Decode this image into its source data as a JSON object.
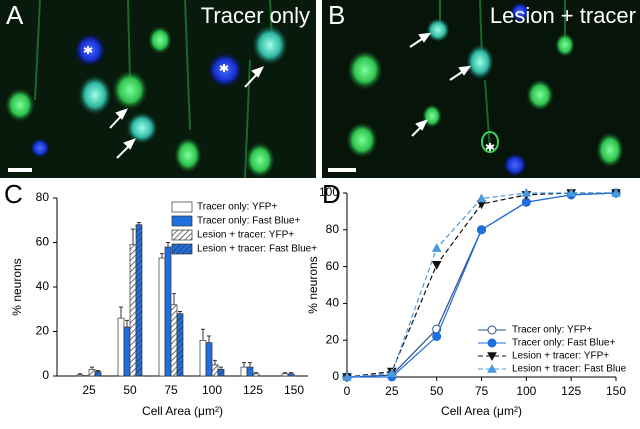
{
  "panels": [
    {
      "label": "A",
      "title": "Tracer only"
    },
    {
      "label": "B",
      "title": "Lesion + tracer"
    }
  ],
  "chart_data": [
    {
      "type": "bar",
      "panel_label": "C",
      "xlabel": "Cell Area (μm²)",
      "ylabel": "% neurons",
      "categories": [
        "25",
        "50",
        "75",
        "100",
        "125",
        "150"
      ],
      "ylim": [
        0,
        80
      ],
      "yticks": [
        0,
        20,
        40,
        60,
        80
      ],
      "series": [
        {
          "name": "Tracer only: YFP+",
          "color": "#ffffff",
          "hatch": false,
          "values": [
            0.5,
            26,
            53,
            16,
            4,
            1
          ],
          "errors": [
            0.5,
            5,
            2,
            5,
            2,
            0.5
          ]
        },
        {
          "name": "Tracer only: Fast Blue+",
          "color": "#1f6fe0",
          "hatch": false,
          "values": [
            0.2,
            22,
            58,
            15,
            4,
            1
          ],
          "errors": [
            0,
            3,
            2,
            3,
            2,
            0.5
          ]
        },
        {
          "name": "Lesion + tracer: YFP+",
          "color": "#ffffff",
          "hatch": true,
          "values": [
            3,
            59,
            32,
            5,
            1,
            0
          ],
          "errors": [
            1,
            7,
            5,
            2,
            0.5,
            0
          ]
        },
        {
          "name": "Lesion + tracer: Fast Blue+",
          "color": "#1f6fe0",
          "hatch": true,
          "values": [
            2,
            68,
            28,
            3,
            0,
            0
          ],
          "errors": [
            0.5,
            1,
            1,
            1,
            0,
            0
          ]
        }
      ]
    },
    {
      "type": "line",
      "panel_label": "D",
      "xlabel": "Cell Area (μm²)",
      "ylabel": "% neurons",
      "x": [
        0,
        25,
        50,
        75,
        100,
        125,
        150
      ],
      "xlim": [
        0,
        150
      ],
      "xticks": [
        0,
        25,
        50,
        75,
        100,
        125,
        150
      ],
      "ylim": [
        0,
        100
      ],
      "yticks": [
        0,
        20,
        40,
        60,
        80,
        100
      ],
      "series": [
        {
          "name": "Tracer only: YFP+",
          "color": "#2b4f8c",
          "marker": "circle-open",
          "dash": false,
          "values": [
            0,
            1,
            26,
            80,
            95,
            99,
            100
          ]
        },
        {
          "name": "Tracer only: Fast Blue+",
          "color": "#1f6fe0",
          "marker": "circle",
          "dash": false,
          "values": [
            0,
            0,
            22,
            80,
            95,
            99,
            100
          ]
        },
        {
          "name": "Lesion + tracer: YFP+",
          "color": "#111111",
          "marker": "triangle-down",
          "dash": true,
          "values": [
            0,
            3,
            61,
            94,
            99,
            100,
            100
          ]
        },
        {
          "name": "Lesion + tracer: Fast Blue",
          "color": "#4a9ae0",
          "marker": "triangle-up",
          "dash": true,
          "values": [
            0,
            2,
            70,
            97,
            100,
            100,
            100
          ]
        }
      ]
    }
  ]
}
